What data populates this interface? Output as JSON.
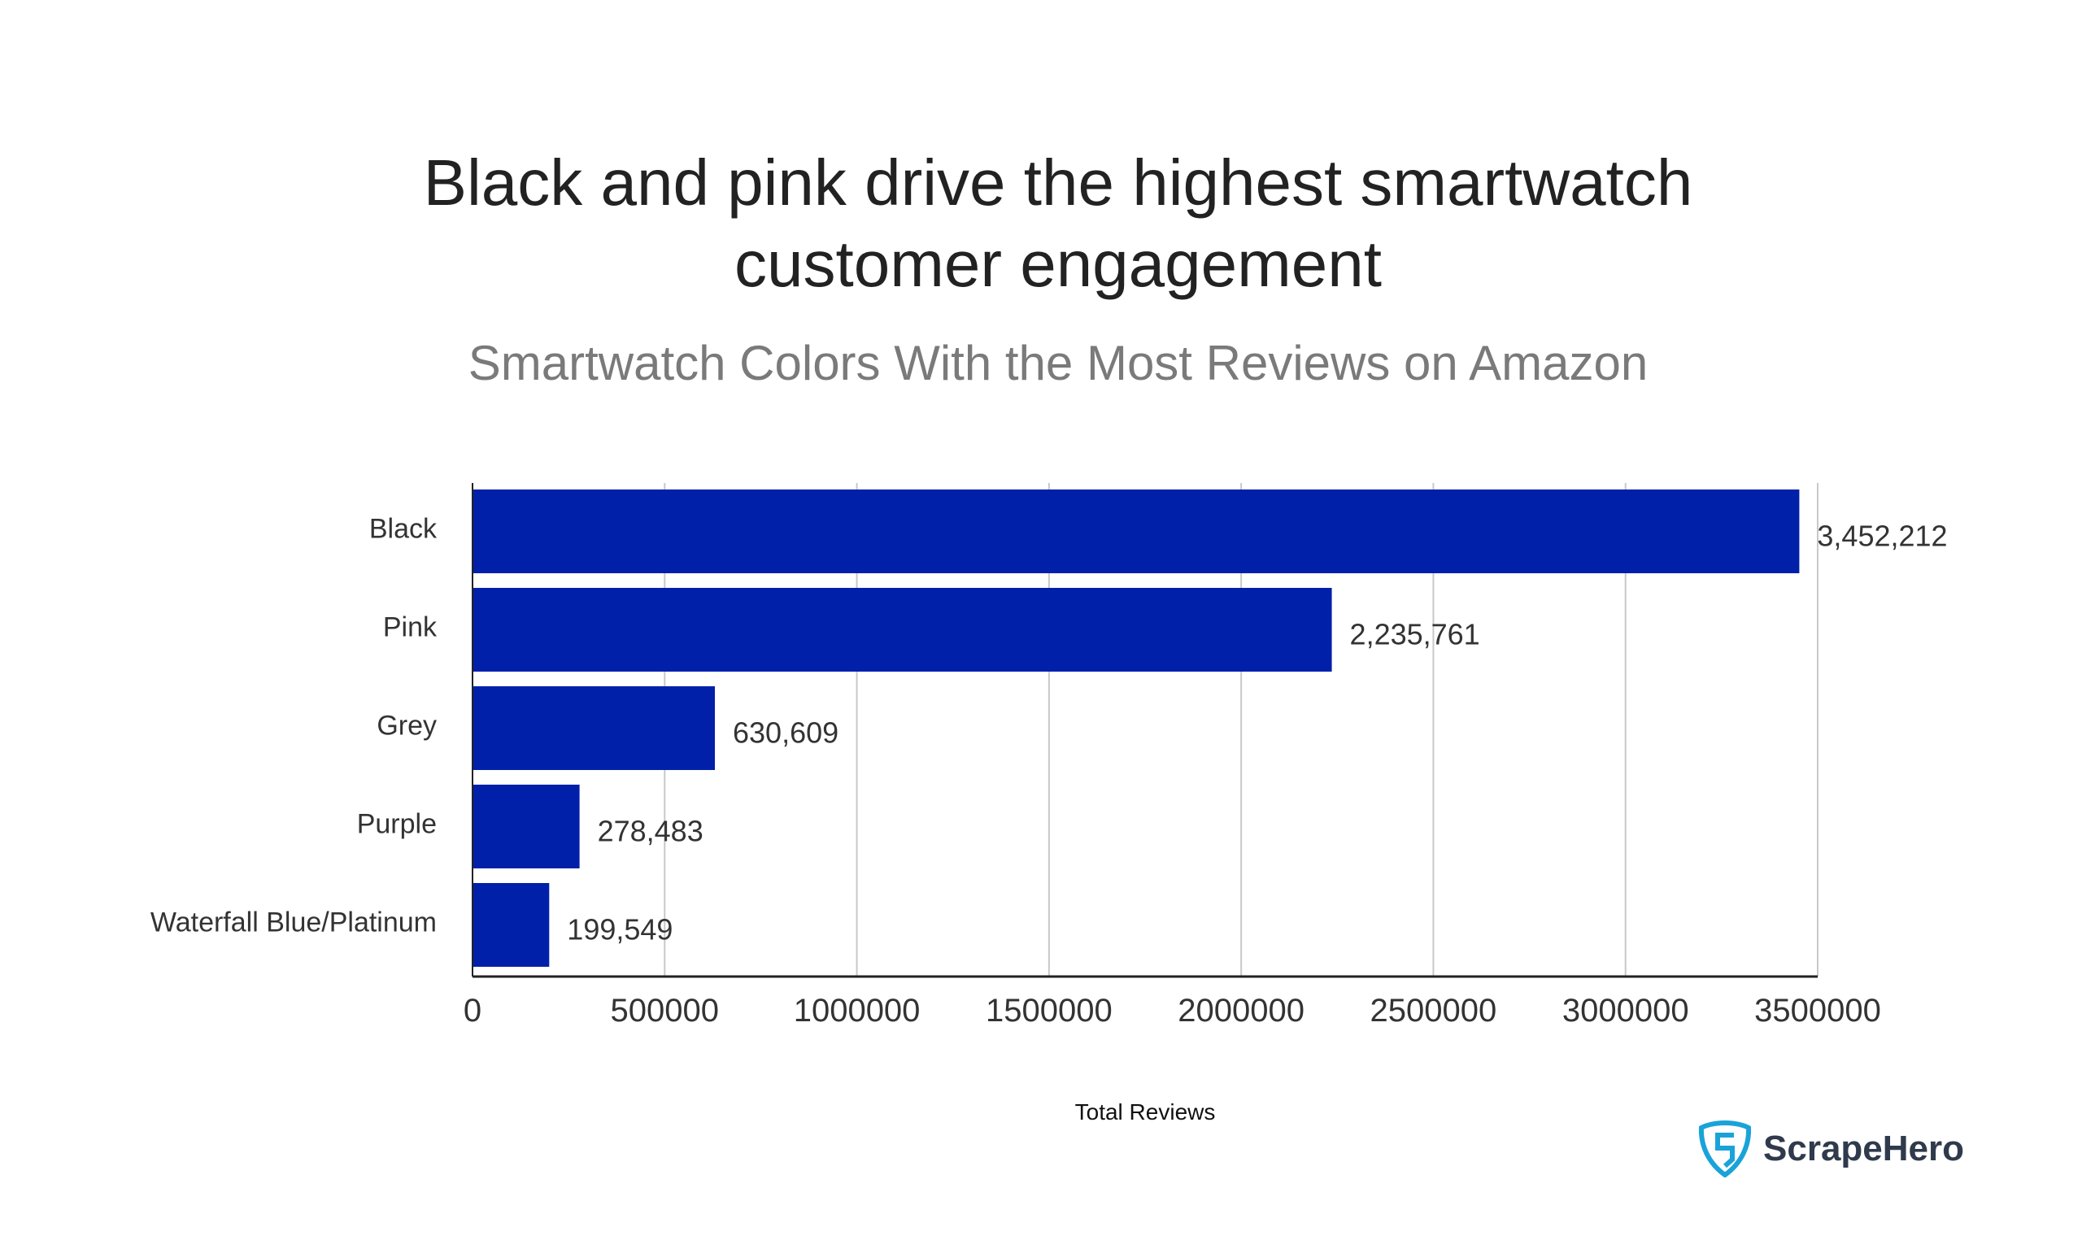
{
  "chart_data": {
    "type": "bar",
    "orientation": "horizontal",
    "title": "Black and pink drive the highest smartwatch customer engagement",
    "subtitle": "Smartwatch Colors With the Most Reviews on Amazon",
    "xlabel": "Total Reviews",
    "ylabel": "",
    "categories": [
      "Black",
      "Pink",
      "Grey",
      "Purple",
      "Waterfall Blue/Platinum"
    ],
    "values": [
      3452212,
      2235761,
      630609,
      278483,
      199549
    ],
    "data_labels": [
      "3,452,212",
      "2,235,761",
      "630,609",
      "278,483",
      "199,549"
    ],
    "xlim": [
      0,
      3500000
    ],
    "xticks": [
      "0",
      "500000",
      "1000000",
      "1500000",
      "2000000",
      "2500000",
      "3000000",
      "3500000"
    ],
    "grid": "vertical",
    "bar_color": "#0020AA"
  },
  "logo": {
    "text": "ScrapeHero",
    "icon": "shield-s-icon",
    "color": "#1aa3d9"
  }
}
